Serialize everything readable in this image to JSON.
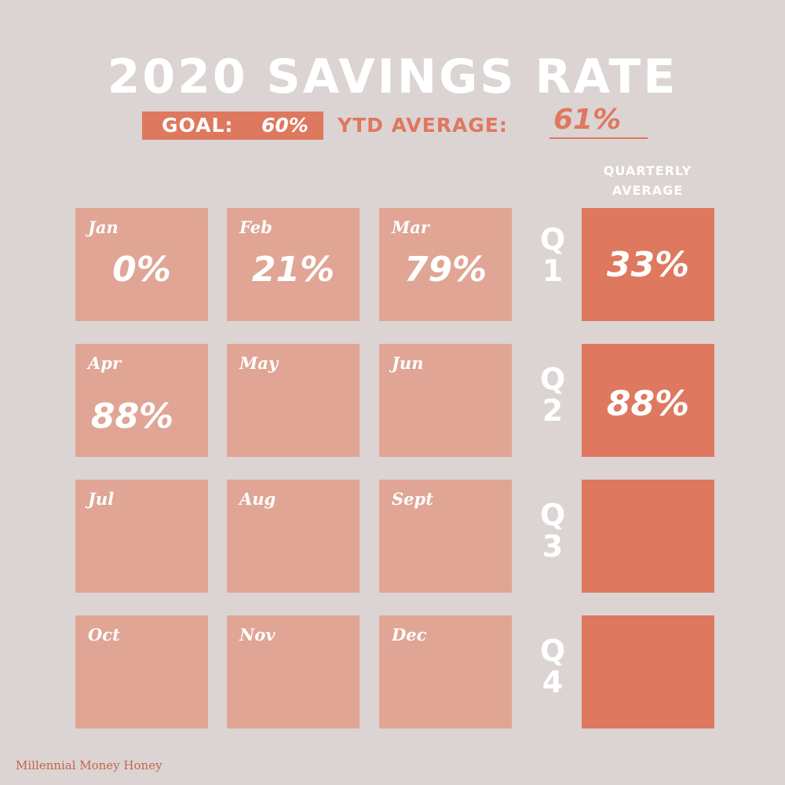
{
  "title": "2020 SAVINGS RATE",
  "goal": {
    "label": "GOAL:",
    "value": "60%"
  },
  "ytd": {
    "label": "YTD AVERAGE:",
    "value": "61%"
  },
  "quarterly_header": [
    "QUARTERLY",
    "AVERAGE"
  ],
  "months": [
    {
      "name": "Jan",
      "value": "0%"
    },
    {
      "name": "Feb",
      "value": "21%"
    },
    {
      "name": "Mar",
      "value": "79%"
    },
    {
      "name": "Apr",
      "value": "88%"
    },
    {
      "name": "May",
      "value": ""
    },
    {
      "name": "Jun",
      "value": ""
    },
    {
      "name": "Jul",
      "value": ""
    },
    {
      "name": "Aug",
      "value": ""
    },
    {
      "name": "Sept",
      "value": ""
    },
    {
      "name": "Oct",
      "value": ""
    },
    {
      "name": "Nov",
      "value": ""
    },
    {
      "name": "Dec",
      "value": ""
    }
  ],
  "quarters": [
    {
      "letter": "Q",
      "number": "1",
      "average": "33%"
    },
    {
      "letter": "Q",
      "number": "2",
      "average": "88%"
    },
    {
      "letter": "Q",
      "number": "3",
      "average": ""
    },
    {
      "letter": "Q",
      "number": "4",
      "average": ""
    }
  ],
  "brand": "Millennial Money Honey",
  "colors": {
    "background": "#dcd3d3",
    "month_cell": "#e0a594",
    "quarter_cell": "#de785e",
    "accent": "#de785e"
  }
}
